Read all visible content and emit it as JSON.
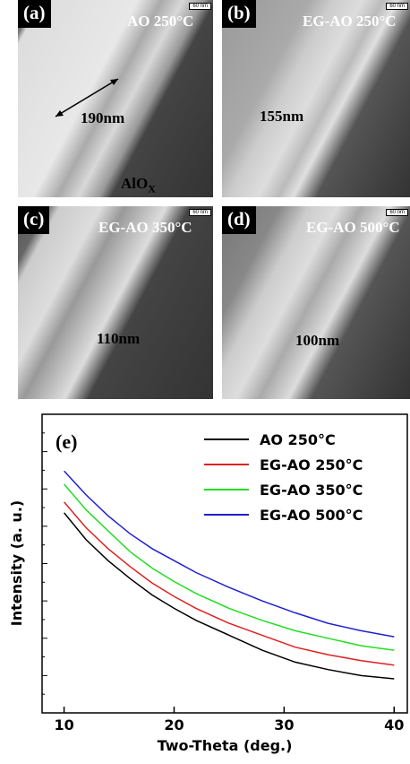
{
  "panels": [
    {
      "label": "(a)",
      "title": "AO 250°C",
      "scale": "60 nm",
      "thickness": "190nm",
      "material": "AlO",
      "material_sub": "X"
    },
    {
      "label": "(b)",
      "title": "EG-AO 250°C",
      "scale": "60 nm",
      "thickness": "155nm"
    },
    {
      "label": "(c)",
      "title": "EG-AO 350°C",
      "scale": "60 nm",
      "thickness": "110nm"
    },
    {
      "label": "(d)",
      "title": "EG-AO 500°C",
      "scale": "60 nm",
      "thickness": "100nm"
    }
  ],
  "chart_data": {
    "type": "line",
    "annotation": "(e)",
    "xlabel": "Two-Theta (deg.)",
    "ylabel": "Intensity (a. u.)",
    "x": [
      10,
      12,
      14,
      16,
      18,
      20,
      22,
      25,
      28,
      31,
      34,
      37,
      40
    ],
    "series": [
      {
        "name": "AO 250°C",
        "color": "#000000",
        "values": [
          67,
          58,
          51,
          45,
          39.5,
          35,
          31,
          26,
          21,
          17,
          14.5,
          12.5,
          11.4
        ]
      },
      {
        "name": "EG-AO 250°C",
        "color": "#e02020",
        "values": [
          70.6,
          62,
          55,
          49,
          43.5,
          39,
          35,
          30,
          26,
          22,
          19.5,
          17.5,
          16
        ]
      },
      {
        "name": "EG-AO 350°C",
        "color": "#22dd22",
        "values": [
          76.6,
          68,
          61,
          54,
          48.5,
          44,
          40,
          35,
          31,
          27.5,
          25,
          22.5,
          21
        ]
      },
      {
        "name": "EG-AO 500°C",
        "color": "#2020d0",
        "values": [
          81,
          73,
          66,
          60,
          55,
          51,
          47,
          42,
          37.5,
          33.5,
          30,
          27.5,
          25.5
        ]
      }
    ],
    "xlim": [
      8,
      41.2
    ],
    "ylim": [
      0,
      100
    ],
    "xticks": [
      10,
      20,
      30,
      40
    ],
    "legend": "upper right"
  }
}
